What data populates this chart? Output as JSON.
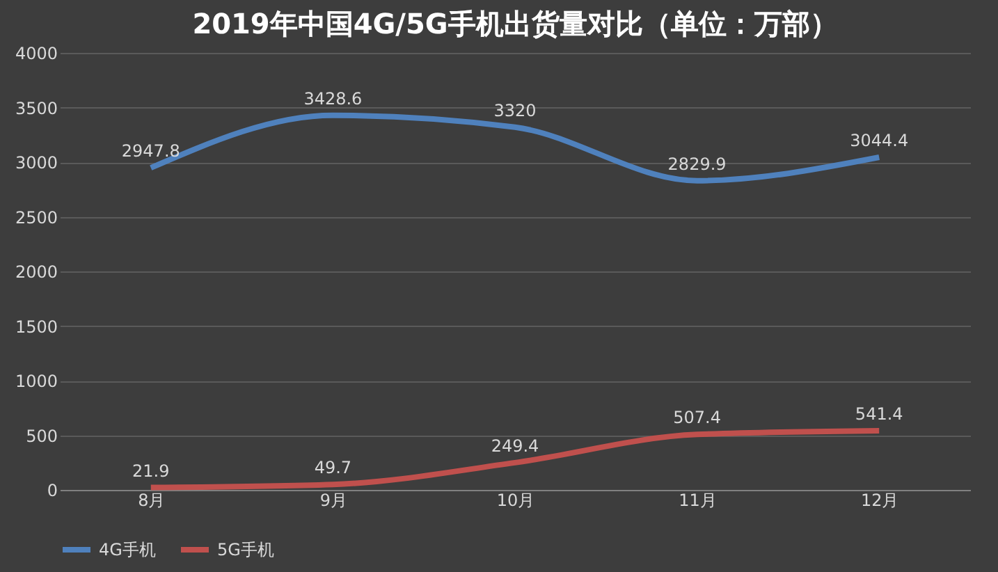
{
  "chart_data": {
    "type": "line",
    "title": "2019年中国4G/5G手机出货量对比（单位：万部）",
    "categories": [
      "8月",
      "9月",
      "10月",
      "11月",
      "12月"
    ],
    "series": [
      {
        "name": "4G手机",
        "color": "#4f81bd",
        "values": [
          2947.8,
          3428.6,
          3320,
          2829.9,
          3044.4
        ]
      },
      {
        "name": "5G手机",
        "color": "#c0504d",
        "values": [
          21.9,
          49.7,
          249.4,
          507.4,
          541.4
        ]
      }
    ],
    "ylim": [
      0,
      4000
    ],
    "yticks": [
      0,
      500,
      1000,
      1500,
      2000,
      2500,
      3000,
      3500,
      4000
    ],
    "grid": "y",
    "legend": "bottom",
    "data_labels": true,
    "marker": "none",
    "line_style": "solid"
  }
}
